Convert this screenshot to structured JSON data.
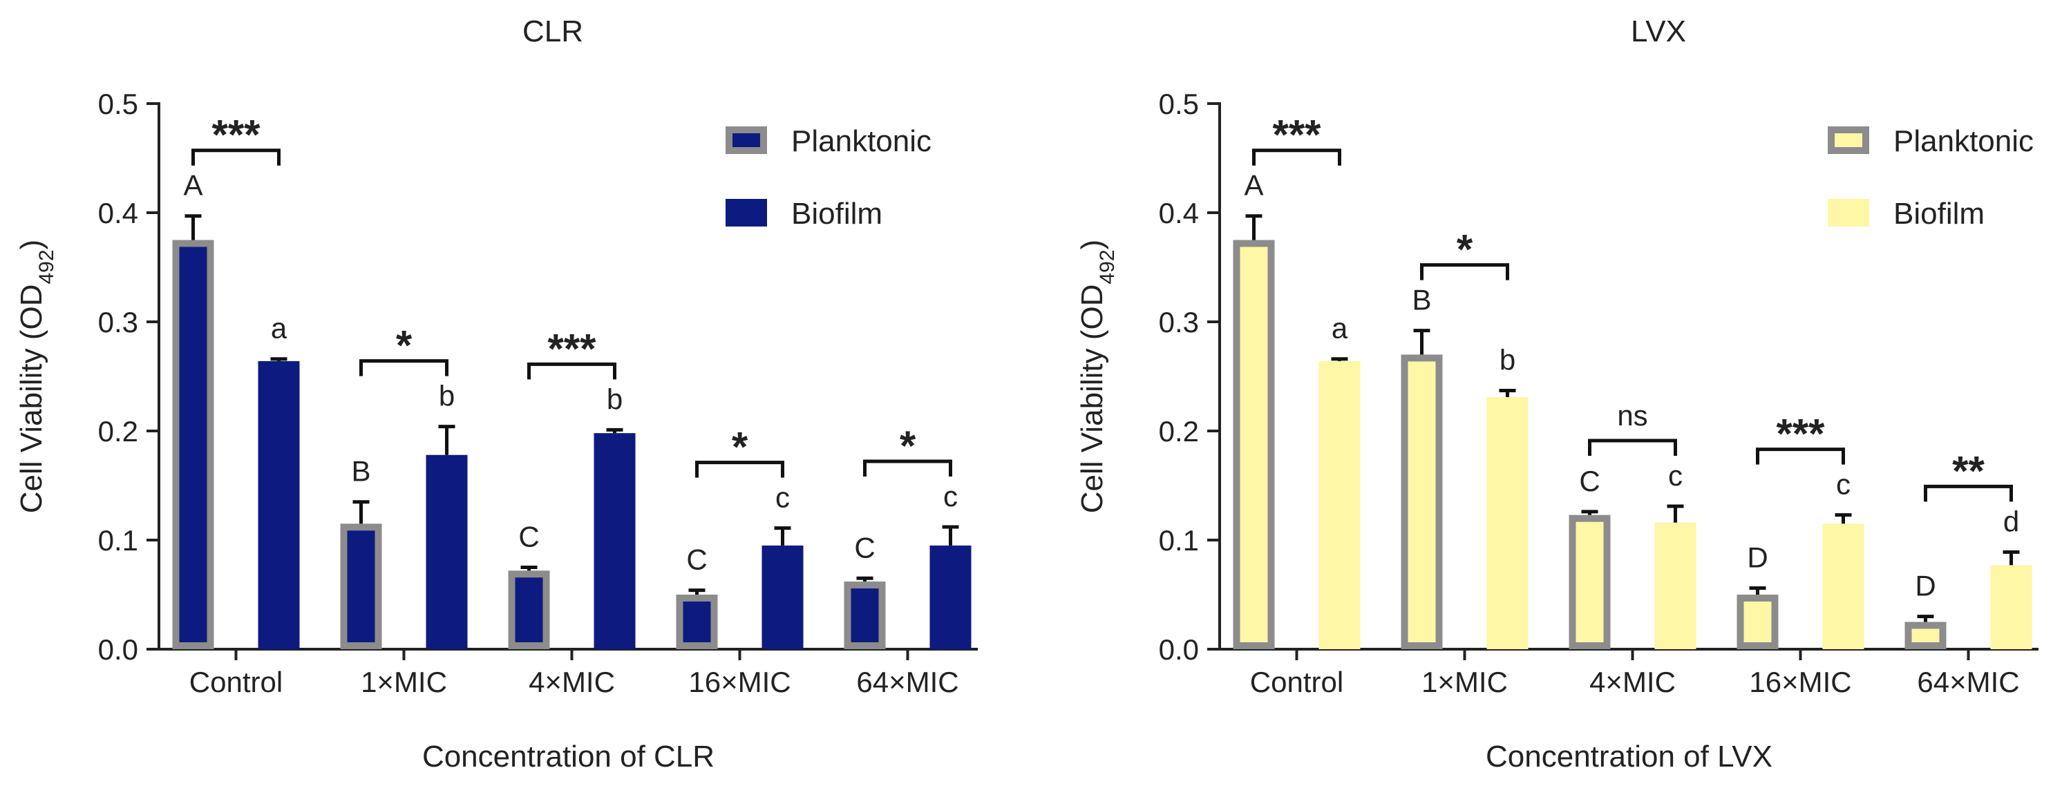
{
  "chart_data": [
    {
      "type": "bar",
      "title": "CLR",
      "xlabel": "Concentration of CLR",
      "ylabel": "Cell Viability (OD",
      "ylabel_sub": "492",
      "ylabel_end": ")",
      "ylim": [
        0,
        0.5
      ],
      "yticks": [
        "0.0",
        "0.1",
        "0.2",
        "0.3",
        "0.4",
        "0.5"
      ],
      "categories": [
        "Control",
        "1×MIC",
        "4×MIC",
        "16×MIC",
        "64×MIC"
      ],
      "series": [
        {
          "name": "Planktonic",
          "values": [
            0.375,
            0.115,
            0.072,
            0.05,
            0.062
          ],
          "errors": [
            0.022,
            0.02,
            0.003,
            0.004,
            0.003
          ],
          "letters": [
            "A",
            "B",
            "C",
            "C",
            "C"
          ]
        },
        {
          "name": "Biofilm",
          "values": [
            0.264,
            0.178,
            0.198,
            0.095,
            0.095
          ],
          "errors": [
            0.002,
            0.026,
            0.003,
            0.016,
            0.017
          ],
          "letters": [
            "a",
            "b",
            "b",
            "c",
            "c"
          ]
        }
      ],
      "significance": [
        "***",
        "*",
        "***",
        "*",
        "*"
      ],
      "legend": [
        "Planktonic",
        "Biofilm"
      ],
      "legend_position": "top-right",
      "colors": {
        "planktonic_fill": "#0d1b80",
        "planktonic_edge": "#8c8c8c",
        "biofilm_fill": "#0d1b80",
        "biofilm_edge": "#0d1b80"
      }
    },
    {
      "type": "bar",
      "title": "LVX",
      "xlabel": "Concentration of LVX",
      "ylabel": "Cell Viability (OD",
      "ylabel_sub": "492",
      "ylabel_end": ")",
      "ylim": [
        0,
        0.5
      ],
      "yticks": [
        "0.0",
        "0.1",
        "0.2",
        "0.3",
        "0.4",
        "0.5"
      ],
      "categories": [
        "Control",
        "1×MIC",
        "4×MIC",
        "16×MIC",
        "64×MIC"
      ],
      "series": [
        {
          "name": "Planktonic",
          "values": [
            0.375,
            0.27,
            0.123,
            0.05,
            0.025
          ],
          "errors": [
            0.022,
            0.022,
            0.003,
            0.006,
            0.005
          ],
          "letters": [
            "A",
            "B",
            "C",
            "D",
            "D"
          ]
        },
        {
          "name": "Biofilm",
          "values": [
            0.264,
            0.231,
            0.116,
            0.115,
            0.077
          ],
          "errors": [
            0.002,
            0.006,
            0.015,
            0.008,
            0.012
          ],
          "letters": [
            "a",
            "b",
            "c",
            "c",
            "d"
          ]
        }
      ],
      "significance": [
        "***",
        "*",
        "ns",
        "***",
        "**"
      ],
      "legend": [
        "Planktonic",
        "Biofilm"
      ],
      "legend_position": "top-right",
      "colors": {
        "planktonic_fill": "#fdf7a6",
        "planktonic_edge": "#8c8c8c",
        "biofilm_fill": "#fdf7a6",
        "biofilm_edge": "#fdf7a6"
      }
    }
  ]
}
